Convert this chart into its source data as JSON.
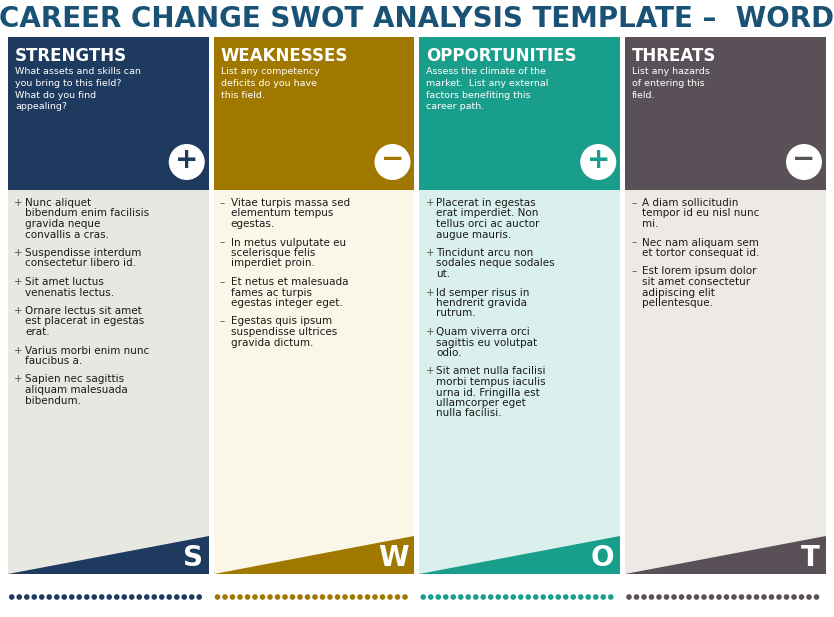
{
  "title": "CAREER CHANGE SWOT ANALYSIS TEMPLATE –  WORD",
  "title_color": "#1a5276",
  "title_fontsize": 20,
  "background_color": "#ffffff",
  "sections": [
    {
      "name": "STRENGTHS",
      "letter": "S",
      "header_bg": "#1e3a5f",
      "body_bg": "#e8e8e2",
      "accent_color": "#1e3a5f",
      "dot_color": "#1e3a5f",
      "symbol": "+",
      "subtitle": "What assets and skills can\nyou bring to this field?\nWhat do you find\nappealing?",
      "bullet_symbol": "+",
      "items": [
        "Nunc aliquet\nbibendum enim facilisis\ngravida neque\nconvallis a cras.",
        "Suspendisse interdum\nconsectetur libero id.",
        "Sit amet luctus\nvenenatis lectus.",
        "Ornare lectus sit amet\nest placerat in egestas\nerat.",
        "Varius morbi enim nunc\nfaucibus a.",
        "Sapien nec sagittis\naliquam malesuada\nbibendum."
      ]
    },
    {
      "name": "WEAKNESSES",
      "letter": "W",
      "header_bg": "#a07800",
      "body_bg": "#faf6e8",
      "accent_color": "#a07800",
      "dot_color": "#a07800",
      "symbol": "−",
      "subtitle": "List any competency\ndeficits do you have\nthis field.",
      "bullet_symbol": "–",
      "items": [
        "Vitae turpis massa sed\nelementum tempus\negestas.",
        "In metus vulputate eu\nscelerisque felis\nimperdiet proin.",
        "Et netus et malesuada\nfames ac turpis\negestas integer eget.",
        "Egestas quis ipsum\nsuspendisse ultrices\ngravida dictum."
      ]
    },
    {
      "name": "OPPORTUNITIES",
      "letter": "O",
      "header_bg": "#1a9e8c",
      "body_bg": "#daf0ec",
      "accent_color": "#1a9e8c",
      "dot_color": "#1a9e8c",
      "symbol": "+",
      "subtitle": "Assess the climate of the\nmarket.  List any external\nfactors benefiting this\ncareer path.",
      "bullet_symbol": "+",
      "items": [
        "Placerat in egestas\nerat imperdiet. Non\ntellus orci ac auctor\naugue mauris.",
        "Tincidunt arcu non\nsodales neque sodales\nut.",
        "Id semper risus in\nhendrerit gravida\nrutrum.",
        "Quam viverra orci\nsagittis eu volutpat\nodio.",
        "Sit amet nulla facilisi\nmorbi tempus iaculis\nurna id. Fringilla est\nullamcorper eget\nnulla facilisi."
      ]
    },
    {
      "name": "THREATS",
      "letter": "T",
      "header_bg": "#5a5058",
      "body_bg": "#edeae6",
      "accent_color": "#5a5058",
      "dot_color": "#5a5058",
      "symbol": "−",
      "subtitle": "List any hazards\nof entering this\nfield.",
      "bullet_symbol": "–",
      "items": [
        "A diam sollicitudin\ntempor id eu nisl nunc\nmi.",
        "Nec nam aliquam sem\net tortor consequat id.",
        "Est lorem ipsum dolor\nsit amet consectetur\nadipiscing elit\npellentesque."
      ]
    }
  ]
}
